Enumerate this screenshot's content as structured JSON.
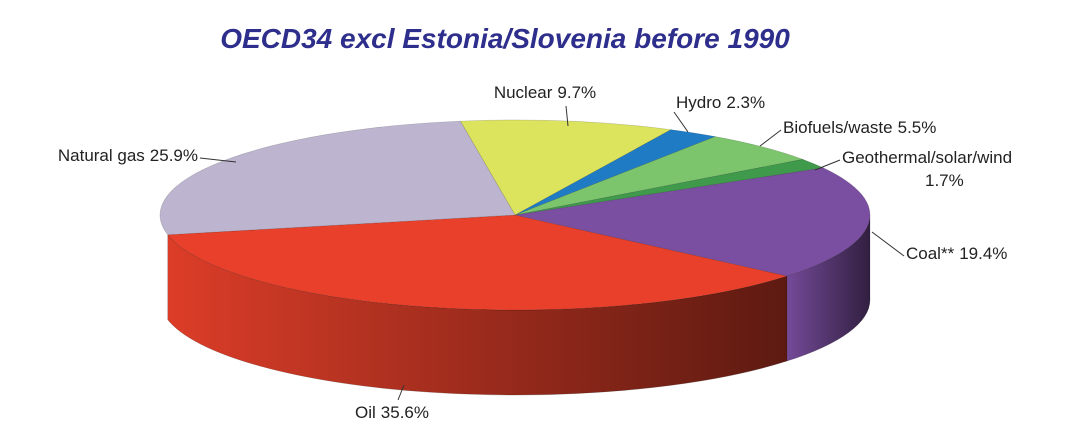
{
  "chart_data": {
    "type": "pie3d",
    "title": "OECD34 excl Estonia/Slovenia before 1990",
    "categories": [
      "Oil",
      "Coal**",
      "Geothermal/solar/wind",
      "Biofuels/waste",
      "Hydro",
      "Nuclear",
      "Natural gas"
    ],
    "values": [
      35.6,
      19.4,
      1.7,
      5.5,
      2.3,
      9.7,
      25.9
    ],
    "value_labels": [
      "35.6%",
      "19.4%",
      "1.7%",
      "5.5%",
      "2.3%",
      "9.7%",
      "25.9%"
    ],
    "colors": [
      "#e8402a",
      "#7a4ea0",
      "#3f9a4c",
      "#7cc56c",
      "#1f7cc4",
      "#dce35c",
      "#bdb5cf"
    ]
  }
}
